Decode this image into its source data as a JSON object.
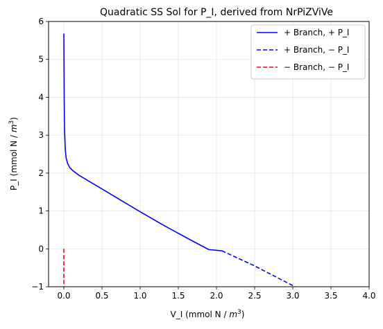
{
  "chart_data": {
    "type": "line",
    "title": "Quadratic SS Sol for P_I, derived from NrPiZViVe",
    "xlabel_main": "V_I (mmol N / ",
    "xlabel_unit": "m",
    "xlabel_exp": "3",
    "xlabel_end": ")",
    "ylabel_main": "P_I (mmol N / ",
    "ylabel_unit": "m",
    "ylabel_exp": "3",
    "ylabel_end": ")",
    "xlim": [
      -0.2,
      4.0
    ],
    "ylim": [
      -1,
      6
    ],
    "xticks": [
      0.0,
      0.5,
      1.0,
      1.5,
      2.0,
      2.5,
      3.0,
      3.5,
      4.0
    ],
    "xtick_labels": [
      "0.0",
      "0.5",
      "1.0",
      "1.5",
      "2.0",
      "2.5",
      "3.0",
      "3.5",
      "4.0"
    ],
    "yticks": [
      -1,
      0,
      1,
      2,
      3,
      4,
      5,
      6
    ],
    "ytick_labels": [
      "−1",
      "0",
      "1",
      "2",
      "3",
      "4",
      "5",
      "6"
    ],
    "grid": true,
    "legend_position": "top-right",
    "series": [
      {
        "name": "+ Branch, + P_I",
        "color": "#0000ff",
        "style": "solid",
        "x": [
          0.0,
          0.005,
          0.01,
          0.02,
          0.03,
          0.05,
          0.08,
          0.12,
          0.2,
          0.3,
          0.5,
          0.8,
          1.0,
          1.3,
          1.6,
          1.9,
          2.07
        ],
        "y": [
          5.68,
          3.9,
          3.1,
          2.6,
          2.4,
          2.25,
          2.14,
          2.06,
          1.94,
          1.82,
          1.58,
          1.22,
          0.98,
          0.63,
          0.3,
          -0.02,
          -0.05
        ]
      },
      {
        "name": "+ Branch, − P_I",
        "color": "#0000ff",
        "style": "dashed",
        "x": [
          2.07,
          2.5,
          3.03
        ],
        "y": [
          -0.05,
          -0.45,
          -1.0
        ]
      },
      {
        "name": "− Branch, − P_I",
        "color": "#ff0000",
        "style": "dashed",
        "x": [
          0.0,
          0.0
        ],
        "y": [
          0.0,
          -1.0
        ]
      }
    ]
  }
}
